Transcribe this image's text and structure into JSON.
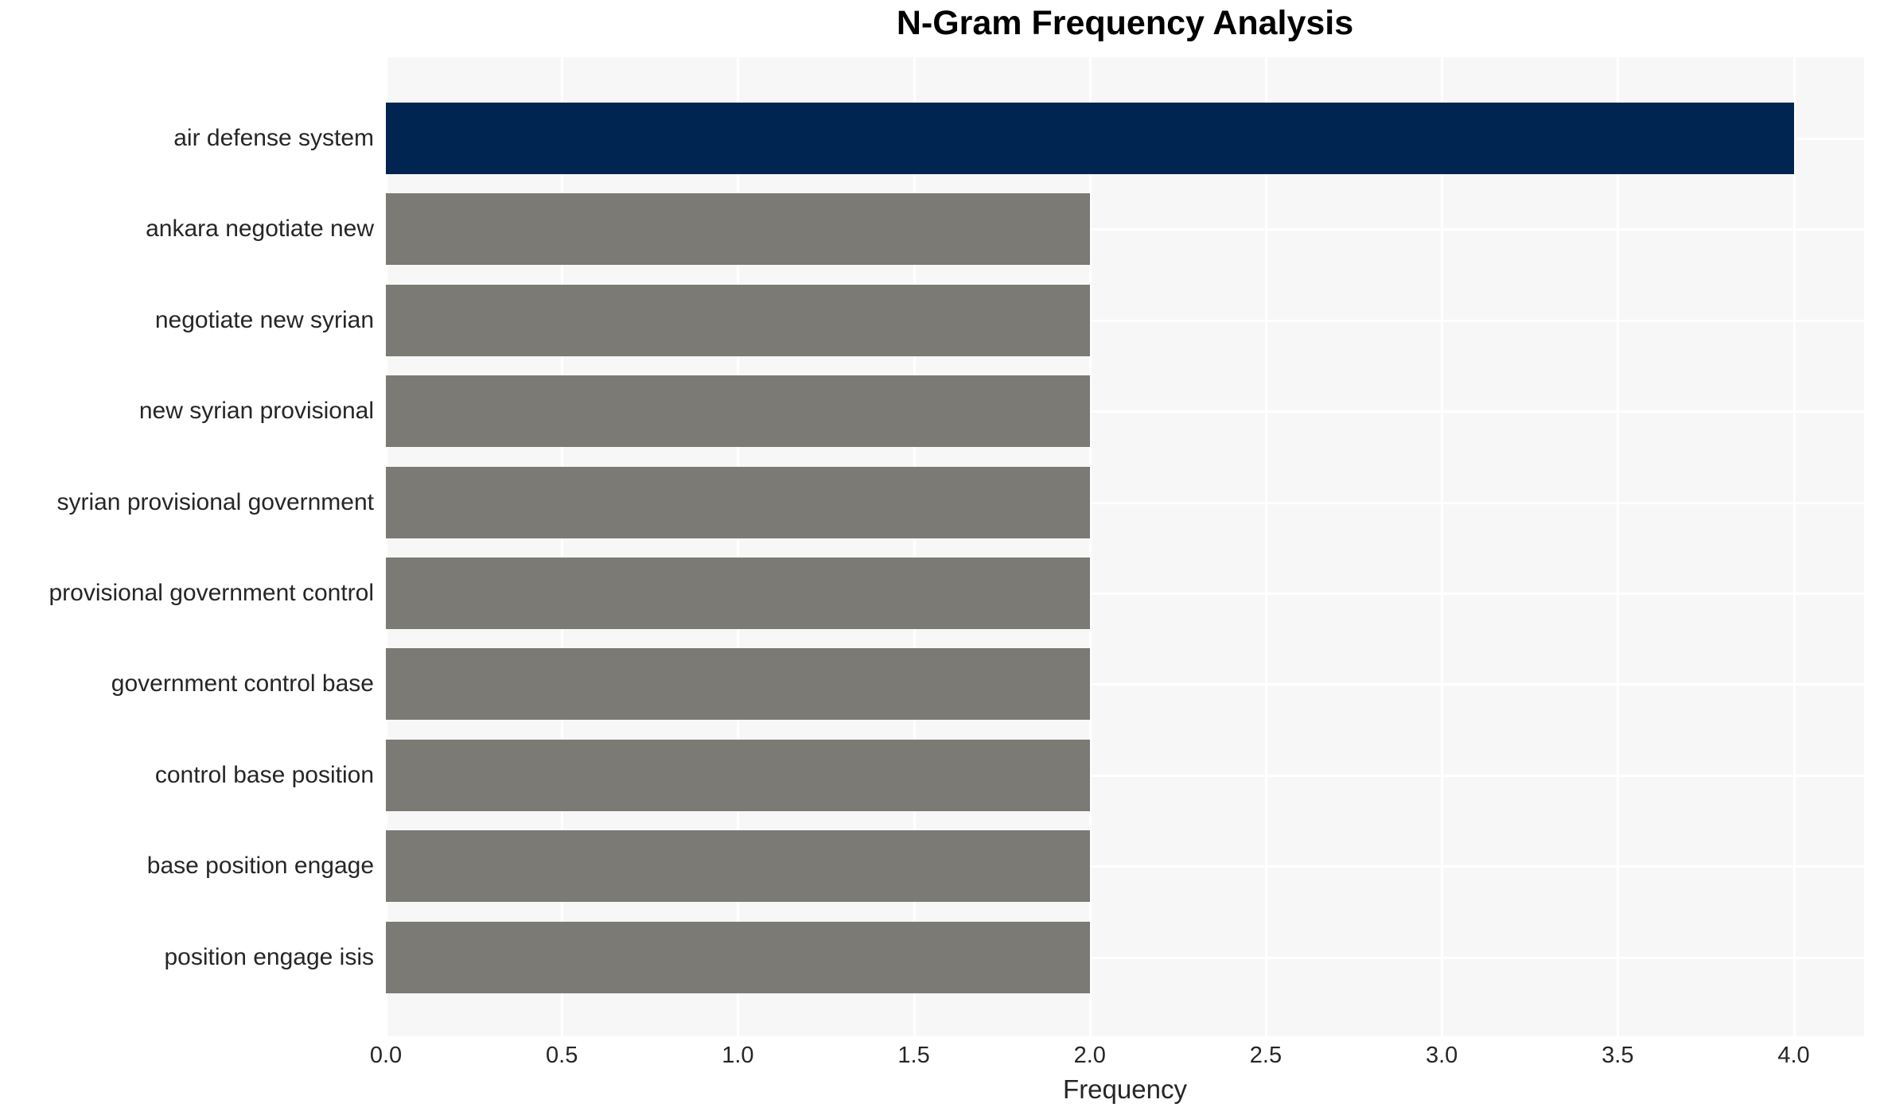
{
  "chart_data": {
    "type": "bar",
    "orientation": "horizontal",
    "title": "N-Gram Frequency Analysis",
    "xlabel": "Frequency",
    "ylabel": "",
    "categories": [
      "air defense system",
      "ankara negotiate new",
      "negotiate new syrian",
      "new syrian provisional",
      "syrian provisional government",
      "provisional government control",
      "government control base",
      "control base position",
      "base position engage",
      "position engage isis"
    ],
    "values": [
      4,
      2,
      2,
      2,
      2,
      2,
      2,
      2,
      2,
      2
    ],
    "bar_colors": [
      "#002550",
      "#7b7a75",
      "#7b7a75",
      "#7b7a75",
      "#7b7a75",
      "#7b7a75",
      "#7b7a75",
      "#7b7a75",
      "#7b7a75",
      "#7b7a75"
    ],
    "x_tick_labels": [
      "0.0",
      "0.5",
      "1.0",
      "1.5",
      "2.0",
      "2.5",
      "3.0",
      "3.5",
      "4.0"
    ],
    "x_tick_values": [
      0.0,
      0.5,
      1.0,
      1.5,
      2.0,
      2.5,
      3.0,
      3.5,
      4.0
    ],
    "xlim": [
      0,
      4.2
    ],
    "grid": true,
    "legend": false,
    "colors": {
      "plot_background": "#f7f7f7",
      "figure_background": "#ffffff",
      "gridline": "#ffffff",
      "text": "#262626",
      "title_text": "#000000"
    }
  }
}
